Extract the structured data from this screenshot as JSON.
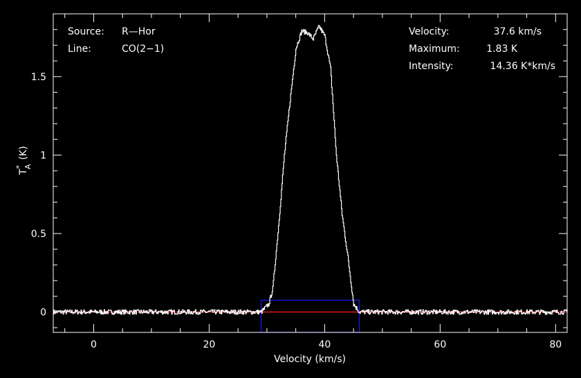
{
  "chart_data": {
    "type": "line",
    "xlabel": "Velocity (km/s)",
    "ylabel": "T",
    "ylabel_sup": "*",
    "ylabel_sub": "A",
    "ylabel_unit": "(K)",
    "xlim": [
      -7,
      82
    ],
    "ylim": [
      -0.13,
      1.9
    ],
    "x_ticks": [
      0,
      20,
      40,
      60,
      80
    ],
    "x_tick_labels": [
      "0",
      "20",
      "40",
      "60",
      "80"
    ],
    "y_ticks": [
      0,
      0.5,
      1,
      1.5
    ],
    "y_tick_labels": [
      "0",
      "0.5",
      "1",
      "1.5"
    ],
    "grid": false,
    "series": [
      {
        "color": "#ffffff",
        "profile": {
          "x": [
            -7,
            29,
            30.3,
            31,
            32,
            33,
            34,
            35,
            36,
            37,
            38,
            39,
            40,
            41,
            42,
            43,
            44,
            45,
            46,
            82
          ],
          "y": [
            0,
            0,
            0.05,
            0.15,
            0.55,
            1.0,
            1.35,
            1.68,
            1.79,
            1.78,
            1.74,
            1.82,
            1.76,
            1.55,
            1.0,
            0.62,
            0.35,
            0.05,
            0,
            0
          ]
        }
      }
    ],
    "baseline": {
      "y": 0,
      "color": "#ff2020"
    },
    "window": {
      "x_from": 29,
      "x_to": 46,
      "y_from": -0.13,
      "y_to": 0.075,
      "color": "#1a1ae6"
    },
    "annotations": {
      "source_label": "Source:",
      "source_value": "R—Hor",
      "line_label": "Line:",
      "line_value": "CO(2−1)",
      "velocity_label": "Velocity:",
      "velocity_value": "37.6 km/s",
      "maximum_label": "Maximum:",
      "maximum_value": "1.83 K",
      "intensity_label": "Intensity:",
      "intensity_value": "14.36 K*km/s"
    }
  }
}
